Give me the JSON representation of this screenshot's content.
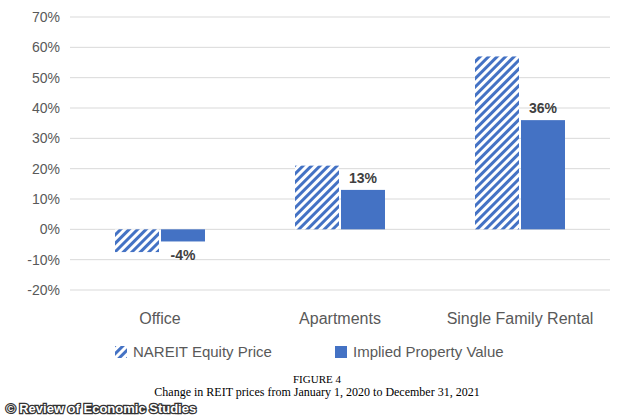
{
  "chart_data": {
    "type": "bar",
    "title": "FIGURE 4",
    "subtitle": "Change in REIT prices from January 1, 2020 to December 31, 2021",
    "source": "© Review of Economic Studies",
    "categories": [
      "Office",
      "Apartments",
      "Single Family Rental"
    ],
    "series": [
      {
        "name": "NAREIT Equity Price",
        "color": "#4472c4",
        "marker": "hatched",
        "values": [
          -7.5,
          21,
          57
        ]
      },
      {
        "name": "Implied Property Value",
        "color": "#4472c4",
        "marker": "solid",
        "values": [
          -4,
          13,
          36
        ],
        "value_labels": [
          "-4%",
          "13%",
          "36%"
        ],
        "data_labels": true
      }
    ],
    "ylim": [
      -20,
      70
    ],
    "yticks": [
      {
        "value": -20,
        "label": "-20%"
      },
      {
        "value": -10,
        "label": "-10%"
      },
      {
        "value": 0,
        "label": "0%"
      },
      {
        "value": 10,
        "label": "10%"
      },
      {
        "value": 20,
        "label": "20%"
      },
      {
        "value": 30,
        "label": "30%"
      },
      {
        "value": 40,
        "label": "40%"
      },
      {
        "value": 50,
        "label": "50%"
      },
      {
        "value": 60,
        "label": "60%"
      },
      {
        "value": 70,
        "label": "70%"
      }
    ],
    "grid": true,
    "legend": "bottom"
  }
}
